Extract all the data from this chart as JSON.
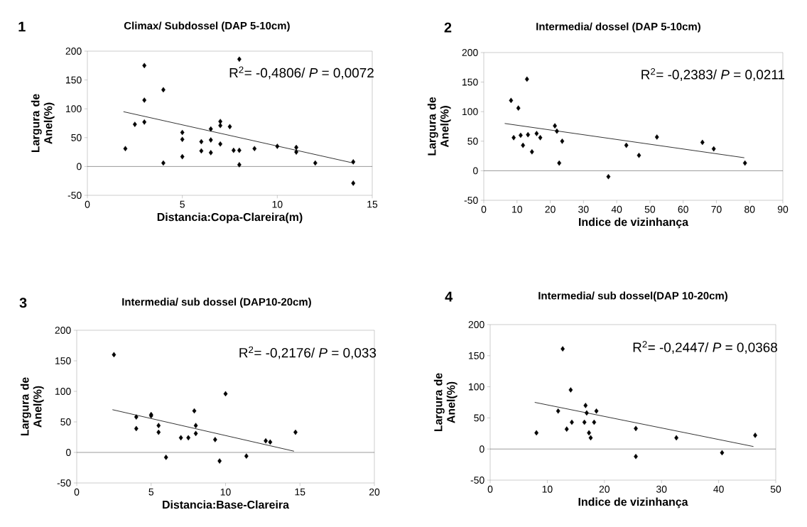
{
  "chart_data": [
    {
      "type": "scatter",
      "title": "Climax/ Subdossel (DAP 5-10cm)",
      "xlabel": "Distancia:Copa-Clareira(m)",
      "ylabel": "Largura de Anel(%)",
      "annotations": [
        "1",
        "R$^{2}$= -0,4806/ *P* = 0,0072"
      ],
      "xlim": [
        0,
        15
      ],
      "ylim": [
        -50,
        200
      ],
      "xticks": [
        0,
        5,
        10,
        15
      ],
      "yticks": [
        -50,
        0,
        50,
        100,
        150,
        200
      ],
      "marker": "diamond",
      "series": [
        {
          "color": "#000000",
          "x": [
            2,
            2.5,
            3,
            3,
            3,
            4,
            4,
            5,
            5,
            5,
            6,
            6,
            6.5,
            6.5,
            6.5,
            7,
            7,
            7,
            7.5,
            7.7,
            8,
            8,
            8,
            8.8,
            10,
            11,
            11,
            12,
            14,
            14
          ],
          "values": [
            31,
            73,
            175,
            115,
            77,
            133,
            6,
            59,
            47,
            17,
            43,
            27,
            65,
            46,
            24,
            78,
            71,
            39,
            69,
            28,
            28,
            3,
            186,
            31,
            35,
            33,
            25,
            6,
            8,
            -29
          ]
        },
        {
          "type": "line",
          "marker": "none",
          "color": "#000000",
          "x": [
            1.9,
            14
          ],
          "values": [
            95,
            6
          ]
        }
      ]
    },
    {
      "type": "scatter",
      "title": "Intermedia/ dossel (DAP 5-10cm)",
      "xlabel": "Indice de vizinhança",
      "ylabel": "Largura de Anel(%)",
      "annotations": [
        "2",
        "R$^{2}$= -0,2383/ *P* = 0,0211"
      ],
      "xlim": [
        0,
        90
      ],
      "ylim": [
        -50,
        200
      ],
      "xticks": [
        0,
        10,
        20,
        30,
        40,
        50,
        60,
        70,
        80,
        90
      ],
      "yticks": [
        -50,
        0,
        50,
        100,
        150,
        200
      ],
      "marker": "diamond",
      "series": [
        {
          "color": "#000000",
          "x": [
            8.2,
            10.4,
            9,
            11.1,
            11.8,
            13,
            13.3,
            14.5,
            15.9,
            17,
            21.4,
            22,
            22.7,
            23.6,
            37.5,
            42.9,
            46.7,
            52.1,
            65.8,
            69.2,
            78.6
          ],
          "values": [
            119,
            106,
            56,
            60,
            43,
            155,
            61,
            32,
            63,
            56,
            76,
            67,
            13,
            50,
            -10,
            43,
            26,
            57,
            48,
            37,
            13
          ]
        },
        {
          "type": "line",
          "marker": "none",
          "color": "#000000",
          "x": [
            6.3,
            78.4
          ],
          "values": [
            80,
            22
          ]
        }
      ]
    },
    {
      "type": "scatter",
      "title": "Intermedia/ sub dossel (DAP10-20cm)",
      "xlabel": "Distancia:Base-Clareira",
      "ylabel": "Largura de Anel(%)",
      "annotations": [
        "3",
        "R$^{2}$= -0,2176/ *P* = 0,033"
      ],
      "xlim": [
        0,
        20
      ],
      "ylim": [
        -50,
        200
      ],
      "xticks": [
        0,
        5,
        10,
        15,
        20
      ],
      "yticks": [
        -50,
        0,
        50,
        100,
        150,
        200
      ],
      "marker": "diamond",
      "series": [
        {
          "color": "#000000",
          "x": [
            2.5,
            4,
            4,
            5,
            5,
            5.5,
            5.5,
            6,
            7,
            7.5,
            7.9,
            8,
            8,
            9.3,
            9.6,
            10,
            11.4,
            12.7,
            13,
            14.7
          ],
          "values": [
            160,
            58,
            39,
            62,
            60,
            44,
            33,
            -8,
            24,
            24,
            68,
            44,
            31,
            21,
            -14,
            96,
            -6,
            19,
            17,
            33
          ]
        },
        {
          "type": "line",
          "marker": "none",
          "color": "#000000",
          "x": [
            2.4,
            14.6
          ],
          "values": [
            70,
            2
          ]
        }
      ]
    },
    {
      "type": "scatter",
      "title": "Intermedia/ sub dossel(DAP 10-20cm)",
      "xlabel": "Indice de vizinhança",
      "ylabel": "Largura de Anel(%)",
      "annotations": [
        "4",
        "R$^{2}$= -0,2447/ *P* = 0,0368"
      ],
      "xlim": [
        0,
        50
      ],
      "ylim": [
        -50,
        200
      ],
      "xticks": [
        0,
        10,
        20,
        30,
        40,
        50
      ],
      "yticks": [
        -50,
        0,
        50,
        100,
        150,
        200
      ],
      "marker": "diamond",
      "series": [
        {
          "color": "#000000",
          "x": [
            8.1,
            11.9,
            12.7,
            13.4,
            14.1,
            14.3,
            16.5,
            16.7,
            16.9,
            17.3,
            17.6,
            18.2,
            18.6,
            25.5,
            25.5,
            32.6,
            40.6,
            46.4
          ],
          "values": [
            26,
            61,
            161,
            32,
            95,
            43,
            43,
            70,
            58,
            26,
            18,
            43,
            61,
            33,
            -12,
            18,
            -6,
            22
          ]
        },
        {
          "type": "line",
          "marker": "none",
          "color": "#000000",
          "x": [
            7.8,
            46.1
          ],
          "values": [
            75,
            4
          ]
        }
      ]
    }
  ]
}
